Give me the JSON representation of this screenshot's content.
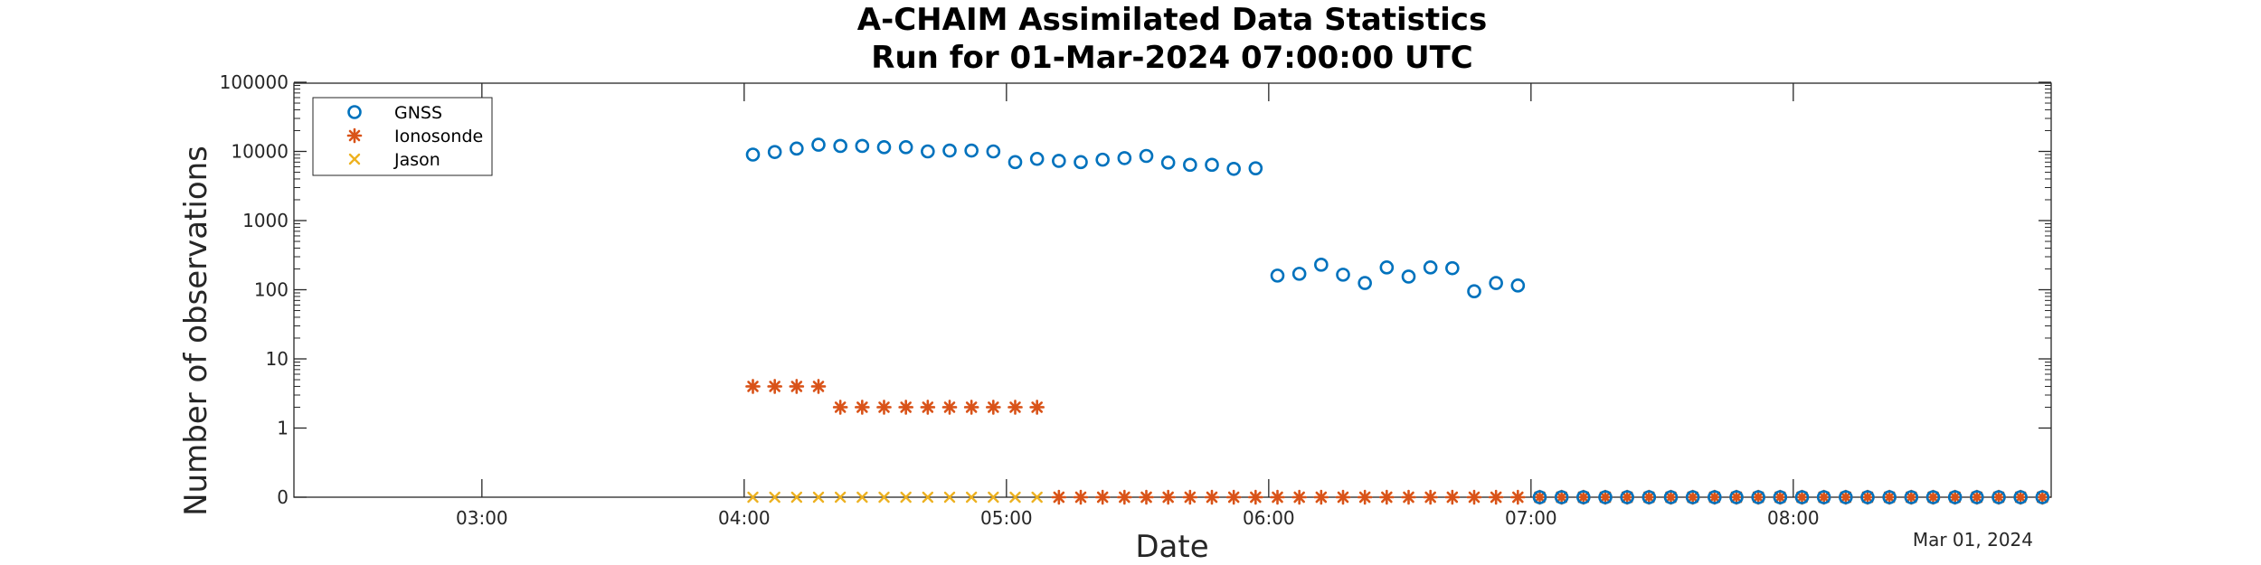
{
  "chart_data": {
    "type": "scatter",
    "title": [
      "A-CHAIM Assimilated Data Statistics",
      "Run for 01-Mar-2024 07:00:00 UTC"
    ],
    "xlabel": "Date",
    "ylabel": "Number of observations",
    "date_label": "Mar 01, 2024",
    "x_ticks": [
      "03:00",
      "04:00",
      "05:00",
      "06:00",
      "07:00",
      "08:00"
    ],
    "y_ticks": [
      "0",
      "1",
      "10",
      "100",
      "1000",
      "10000",
      "100000"
    ],
    "y_scale": "log (0 shown at axis floor)",
    "xlim": [
      "02:17",
      "08:59"
    ],
    "ylim": [
      0,
      100000
    ],
    "grid": false,
    "legend_position": "top-left",
    "series": [
      {
        "name": "GNSS",
        "marker": "circle",
        "color": "#0072BD",
        "points": [
          [
            "04:02",
            9000
          ],
          [
            "04:07",
            9800
          ],
          [
            "04:12",
            11000
          ],
          [
            "04:17",
            12500
          ],
          [
            "04:22",
            12000
          ],
          [
            "04:27",
            12000
          ],
          [
            "04:32",
            11500
          ],
          [
            "04:37",
            11500
          ],
          [
            "04:42",
            10000
          ],
          [
            "04:47",
            10300
          ],
          [
            "04:52",
            10300
          ],
          [
            "04:57",
            10000
          ],
          [
            "05:02",
            7000
          ],
          [
            "05:07",
            7800
          ],
          [
            "05:12",
            7300
          ],
          [
            "05:17",
            7000
          ],
          [
            "05:22",
            7600
          ],
          [
            "05:27",
            8000
          ],
          [
            "05:32",
            8600
          ],
          [
            "05:37",
            6900
          ],
          [
            "05:42",
            6400
          ],
          [
            "05:47",
            6400
          ],
          [
            "05:52",
            5600
          ],
          [
            "05:57",
            5700
          ],
          [
            "06:02",
            160
          ],
          [
            "06:07",
            170
          ],
          [
            "06:12",
            230
          ],
          [
            "06:17",
            165
          ],
          [
            "06:22",
            125
          ],
          [
            "06:27",
            210
          ],
          [
            "06:32",
            155
          ],
          [
            "06:37",
            210
          ],
          [
            "06:42",
            205
          ],
          [
            "06:47",
            95
          ],
          [
            "06:52",
            125
          ],
          [
            "06:57",
            115
          ],
          [
            "07:02",
            0
          ],
          [
            "07:07",
            0
          ],
          [
            "07:12",
            0
          ],
          [
            "07:17",
            0
          ],
          [
            "07:22",
            0
          ],
          [
            "07:27",
            0
          ],
          [
            "07:32",
            0
          ],
          [
            "07:37",
            0
          ],
          [
            "07:42",
            0
          ],
          [
            "07:47",
            0
          ],
          [
            "07:52",
            0
          ],
          [
            "07:57",
            0
          ],
          [
            "08:02",
            0
          ],
          [
            "08:07",
            0
          ],
          [
            "08:12",
            0
          ],
          [
            "08:17",
            0
          ],
          [
            "08:22",
            0
          ],
          [
            "08:27",
            0
          ],
          [
            "08:32",
            0
          ],
          [
            "08:37",
            0
          ],
          [
            "08:42",
            0
          ],
          [
            "08:47",
            0
          ],
          [
            "08:52",
            0
          ],
          [
            "08:57",
            0
          ]
        ]
      },
      {
        "name": "Ionosonde",
        "marker": "asterisk",
        "color": "#D95319",
        "points": [
          [
            "04:02",
            4
          ],
          [
            "04:07",
            4
          ],
          [
            "04:12",
            4
          ],
          [
            "04:17",
            4
          ],
          [
            "04:22",
            2
          ],
          [
            "04:27",
            2
          ],
          [
            "04:32",
            2
          ],
          [
            "04:37",
            2
          ],
          [
            "04:42",
            2
          ],
          [
            "04:47",
            2
          ],
          [
            "04:52",
            2
          ],
          [
            "04:57",
            2
          ],
          [
            "05:02",
            2
          ],
          [
            "05:07",
            2
          ],
          [
            "05:12",
            0
          ],
          [
            "05:17",
            0
          ],
          [
            "05:22",
            0
          ],
          [
            "05:27",
            0
          ],
          [
            "05:32",
            0
          ],
          [
            "05:37",
            0
          ],
          [
            "05:42",
            0
          ],
          [
            "05:47",
            0
          ],
          [
            "05:52",
            0
          ],
          [
            "05:57",
            0
          ],
          [
            "06:02",
            0
          ],
          [
            "06:07",
            0
          ],
          [
            "06:12",
            0
          ],
          [
            "06:17",
            0
          ],
          [
            "06:22",
            0
          ],
          [
            "06:27",
            0
          ],
          [
            "06:32",
            0
          ],
          [
            "06:37",
            0
          ],
          [
            "06:42",
            0
          ],
          [
            "06:47",
            0
          ],
          [
            "06:52",
            0
          ],
          [
            "06:57",
            0
          ],
          [
            "07:02",
            0
          ],
          [
            "07:07",
            0
          ],
          [
            "07:12",
            0
          ],
          [
            "07:17",
            0
          ],
          [
            "07:22",
            0
          ],
          [
            "07:27",
            0
          ],
          [
            "07:32",
            0
          ],
          [
            "07:37",
            0
          ],
          [
            "07:42",
            0
          ],
          [
            "07:47",
            0
          ],
          [
            "07:52",
            0
          ],
          [
            "07:57",
            0
          ],
          [
            "08:02",
            0
          ],
          [
            "08:07",
            0
          ],
          [
            "08:12",
            0
          ],
          [
            "08:17",
            0
          ],
          [
            "08:22",
            0
          ],
          [
            "08:27",
            0
          ],
          [
            "08:32",
            0
          ],
          [
            "08:37",
            0
          ],
          [
            "08:42",
            0
          ],
          [
            "08:47",
            0
          ],
          [
            "08:52",
            0
          ],
          [
            "08:57",
            0
          ]
        ]
      },
      {
        "name": "Jason",
        "marker": "x",
        "color": "#EDB120",
        "points": [
          [
            "04:02",
            0
          ],
          [
            "04:07",
            0
          ],
          [
            "04:12",
            0
          ],
          [
            "04:17",
            0
          ],
          [
            "04:22",
            0
          ],
          [
            "04:27",
            0
          ],
          [
            "04:32",
            0
          ],
          [
            "04:37",
            0
          ],
          [
            "04:42",
            0
          ],
          [
            "04:47",
            0
          ],
          [
            "04:52",
            0
          ],
          [
            "04:57",
            0
          ],
          [
            "05:02",
            0
          ],
          [
            "05:07",
            0
          ],
          [
            "05:12",
            0
          ],
          [
            "05:17",
            0
          ],
          [
            "05:22",
            0
          ],
          [
            "05:27",
            0
          ],
          [
            "05:32",
            0
          ],
          [
            "05:37",
            0
          ],
          [
            "05:42",
            0
          ],
          [
            "05:47",
            0
          ],
          [
            "05:52",
            0
          ],
          [
            "05:57",
            0
          ],
          [
            "06:02",
            0
          ],
          [
            "06:07",
            0
          ],
          [
            "06:12",
            0
          ],
          [
            "06:17",
            0
          ],
          [
            "06:22",
            0
          ],
          [
            "06:27",
            0
          ],
          [
            "06:32",
            0
          ],
          [
            "06:37",
            0
          ],
          [
            "06:42",
            0
          ],
          [
            "06:47",
            0
          ],
          [
            "06:52",
            0
          ],
          [
            "06:57",
            0
          ],
          [
            "07:02",
            0
          ],
          [
            "07:07",
            0
          ],
          [
            "07:12",
            0
          ],
          [
            "07:17",
            0
          ],
          [
            "07:22",
            0
          ],
          [
            "07:27",
            0
          ],
          [
            "07:32",
            0
          ],
          [
            "07:37",
            0
          ],
          [
            "07:42",
            0
          ],
          [
            "07:47",
            0
          ],
          [
            "07:52",
            0
          ],
          [
            "07:57",
            0
          ],
          [
            "08:02",
            0
          ],
          [
            "08:07",
            0
          ],
          [
            "08:12",
            0
          ],
          [
            "08:17",
            0
          ],
          [
            "08:22",
            0
          ],
          [
            "08:27",
            0
          ],
          [
            "08:32",
            0
          ],
          [
            "08:37",
            0
          ],
          [
            "08:42",
            0
          ],
          [
            "08:47",
            0
          ],
          [
            "08:52",
            0
          ],
          [
            "08:57",
            0
          ]
        ]
      }
    ]
  }
}
